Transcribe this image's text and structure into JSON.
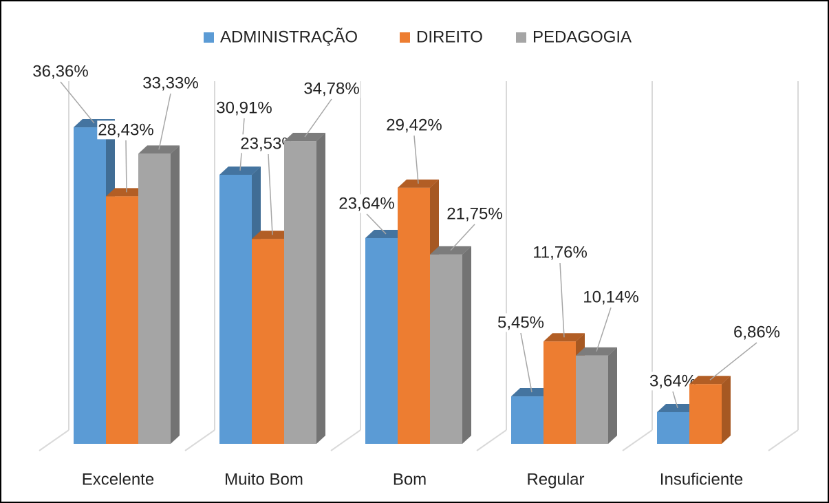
{
  "chart_data": {
    "type": "bar3d",
    "categories": [
      "Excelente",
      "Muito Bom",
      "Bom",
      "Regular",
      "Insuficiente"
    ],
    "series": [
      {
        "name": "ADMINISTRAÇÃO",
        "color": "#5b9bd5",
        "values": [
          36.36,
          30.91,
          23.64,
          5.45,
          3.64
        ],
        "value_labels": [
          "36,36%",
          "30,91%",
          "23,64%",
          "5,45%",
          "3,64%"
        ]
      },
      {
        "name": "DIREITO",
        "color": "#ed7d31",
        "values": [
          28.43,
          23.53,
          29.42,
          11.76,
          6.86
        ],
        "value_labels": [
          "28,43%",
          "23,53%",
          "29,42%",
          "11,76%",
          "6,86%"
        ]
      },
      {
        "name": "PEDAGOGIA",
        "color": "#a5a5a5",
        "values": [
          33.33,
          34.78,
          21.75,
          10.14,
          null
        ],
        "value_labels": [
          "33,33%",
          "34,78%",
          "21,75%",
          "10,14%",
          null
        ]
      }
    ],
    "ylim": [
      0,
      40
    ],
    "legend": "top"
  }
}
